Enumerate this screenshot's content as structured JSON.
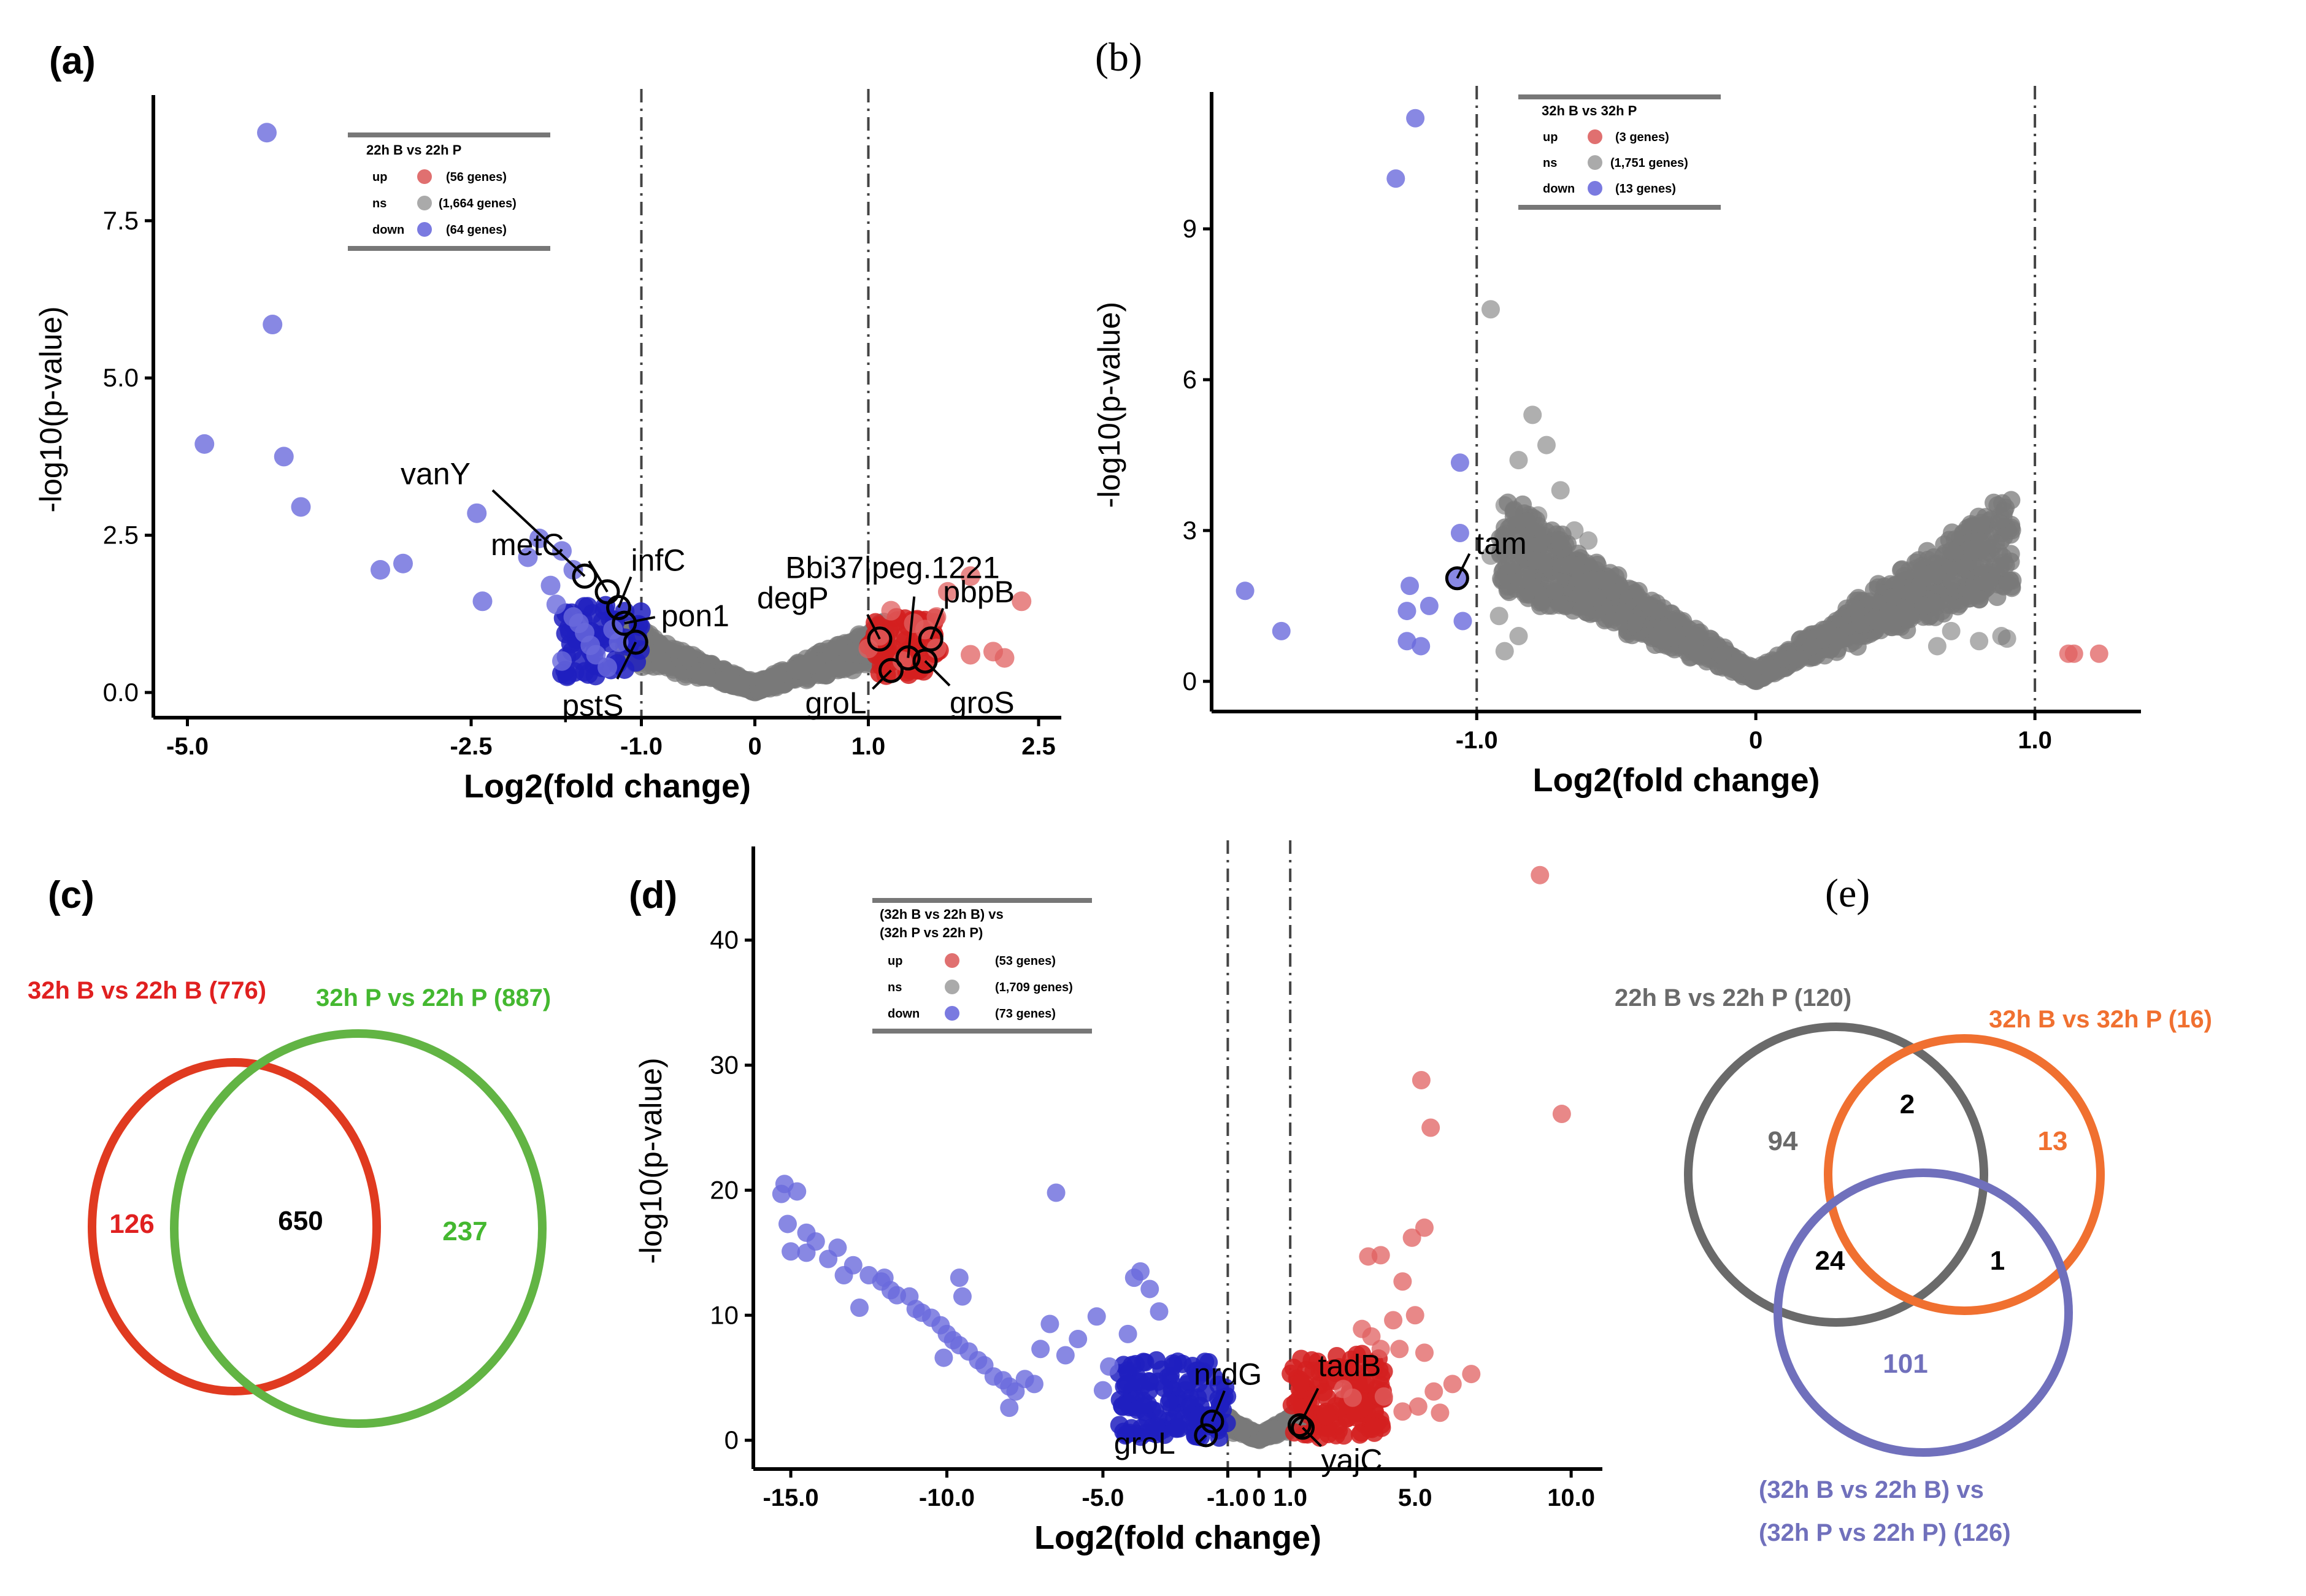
{
  "panels": {
    "a": {
      "label": "(a)"
    },
    "b": {
      "label": "(b)"
    },
    "c": {
      "label": "(c)"
    },
    "d": {
      "label": "(d)"
    },
    "e": {
      "label": "(e)"
    }
  },
  "colors": {
    "up": "#e06060",
    "up_dense": "#d42020",
    "ns": "#7a7a7a",
    "down": "#6a6adc",
    "down_dense": "#2020c0",
    "venn_red": "#e03a20",
    "venn_green": "#62b444",
    "venn_gray": "#6a6a6a",
    "venn_orange": "#f07030",
    "venn_purple": "#7070bc"
  },
  "chart_data": [
    {
      "id": "a",
      "type": "scatter",
      "xlabel": "Log2(fold change)",
      "ylabel": "-log10(p-value)",
      "xlim": [
        -5.3,
        2.7
      ],
      "ylim": [
        -0.4,
        9.4
      ],
      "xticks": [
        -5.0,
        -2.5,
        -1.0,
        0,
        1.0,
        2.5
      ],
      "xtick_labels": [
        "-5.0",
        "-2.5",
        "-1.0",
        "0",
        "1.0",
        "2.5"
      ],
      "yticks": [
        0.0,
        2.5,
        5.0,
        7.5
      ],
      "ytick_labels": [
        "0.0",
        "2.5",
        "5.0",
        "7.5"
      ],
      "thresholds": [
        -1.0,
        1.0
      ],
      "legend": {
        "title": "22h B vs 22h P",
        "rows": [
          {
            "key": "up",
            "count": "(56  genes)"
          },
          {
            "key": "ns",
            "count": "(1,664  genes)"
          },
          {
            "key": "down",
            "count": "(64  genes)"
          }
        ]
      },
      "up_points": [
        [
          1.2,
          1.3
        ],
        [
          1.5,
          1.0
        ],
        [
          1.9,
          1.85
        ],
        [
          1.7,
          1.6
        ],
        [
          2.35,
          1.45
        ],
        [
          2.1,
          0.65
        ],
        [
          1.9,
          0.6
        ],
        [
          1.6,
          0.7
        ],
        [
          1.4,
          1.1
        ],
        [
          2.2,
          0.55
        ],
        [
          1.1,
          0.9
        ],
        [
          1.0,
          0.7
        ],
        [
          1.3,
          0.5
        ],
        [
          1.6,
          1.2
        ]
      ],
      "down_points": [
        [
          -4.3,
          8.9
        ],
        [
          -4.25,
          5.85
        ],
        [
          -4.15,
          3.75
        ],
        [
          -4.85,
          3.95
        ],
        [
          -4.0,
          2.95
        ],
        [
          -2.45,
          2.85
        ],
        [
          -3.1,
          2.05
        ],
        [
          -3.3,
          1.95
        ],
        [
          -2.0,
          2.15
        ],
        [
          -2.4,
          1.45
        ],
        [
          -1.9,
          2.45
        ],
        [
          -1.7,
          2.25
        ],
        [
          -1.6,
          1.95
        ],
        [
          -1.8,
          1.7
        ],
        [
          -1.75,
          1.4
        ],
        [
          -1.6,
          1.2
        ],
        [
          -1.55,
          1.1
        ],
        [
          -1.5,
          0.95
        ],
        [
          -1.45,
          0.75
        ],
        [
          -1.4,
          0.6
        ],
        [
          -1.3,
          0.4
        ],
        [
          -1.7,
          0.5
        ],
        [
          -1.25,
          1.0
        ],
        [
          -1.2,
          0.8
        ]
      ],
      "labels": [
        {
          "text": "vanY",
          "pt": [
            -1.5,
            1.85
          ]
        },
        {
          "text": "metC",
          "pt": [
            -1.3,
            1.6
          ]
        },
        {
          "text": "infC",
          "pt": [
            -1.2,
            1.35
          ]
        },
        {
          "text": "pon1",
          "pt": [
            -1.15,
            1.1
          ]
        },
        {
          "text": "pstS",
          "pt": [
            -1.05,
            0.8
          ]
        },
        {
          "text": "Bbi37|peg.1221",
          "pt": [
            1.35,
            0.55
          ]
        },
        {
          "text": "degP",
          "pt": [
            1.1,
            0.85
          ]
        },
        {
          "text": "pbpB",
          "pt": [
            1.55,
            0.85
          ]
        },
        {
          "text": "groL",
          "pt": [
            1.2,
            0.35
          ]
        },
        {
          "text": "groS",
          "pt": [
            1.5,
            0.5
          ]
        }
      ]
    },
    {
      "id": "b",
      "type": "scatter",
      "xlabel": "Log2(fold change)",
      "ylabel": "-log10(p-value)",
      "xlim": [
        -1.95,
        1.38
      ],
      "ylim": [
        -0.6,
        11.6
      ],
      "xticks": [
        -1.0,
        0,
        1.0
      ],
      "xtick_labels": [
        "-1.0",
        "0",
        "1.0"
      ],
      "yticks": [
        0,
        3,
        6,
        9
      ],
      "ytick_labels": [
        "0",
        "3",
        "6",
        "9"
      ],
      "thresholds": [
        -1.0,
        1.0
      ],
      "legend": {
        "title": "32h B vs 32h P",
        "rows": [
          {
            "key": "up",
            "count": "(3  genes)"
          },
          {
            "key": "ns",
            "count": "(1,751  genes)"
          },
          {
            "key": "down",
            "count": "(13  genes)"
          }
        ]
      },
      "up_points": [
        [
          1.12,
          0.55
        ],
        [
          1.14,
          0.55
        ],
        [
          1.23,
          0.55
        ]
      ],
      "down_points": [
        [
          -1.22,
          11.2
        ],
        [
          -1.29,
          10.0
        ],
        [
          -1.06,
          4.35
        ],
        [
          -1.06,
          2.95
        ],
        [
          -1.07,
          2.05
        ],
        [
          -1.83,
          1.8
        ],
        [
          -1.24,
          1.9
        ],
        [
          -1.17,
          1.5
        ],
        [
          -1.7,
          1.0
        ],
        [
          -1.25,
          1.4
        ],
        [
          -1.05,
          1.2
        ],
        [
          -1.2,
          0.7
        ],
        [
          -1.25,
          0.8
        ]
      ],
      "ns_outliers": [
        [
          -0.95,
          7.4
        ],
        [
          -0.8,
          5.3
        ],
        [
          -0.75,
          4.7
        ],
        [
          -0.85,
          4.4
        ],
        [
          -0.7,
          3.8
        ],
        [
          -0.9,
          3.5
        ],
        [
          -0.78,
          3.3
        ],
        [
          -0.65,
          3.0
        ],
        [
          -0.6,
          2.8
        ],
        [
          -0.95,
          2.5
        ],
        [
          -0.88,
          2.3
        ],
        [
          -0.82,
          2.1
        ],
        [
          -0.72,
          1.8
        ],
        [
          -0.92,
          1.3
        ],
        [
          -0.85,
          0.9
        ],
        [
          -0.9,
          0.6
        ],
        [
          0.55,
          2.2
        ],
        [
          0.6,
          1.5
        ],
        [
          0.7,
          1.0
        ],
        [
          0.8,
          0.8
        ],
        [
          0.88,
          0.9
        ],
        [
          0.9,
          0.85
        ],
        [
          0.65,
          0.7
        ],
        [
          0.48,
          1.2
        ]
      ],
      "labels": [
        {
          "text": "tam",
          "pt": [
            -1.07,
            2.05
          ]
        }
      ]
    },
    {
      "id": "d",
      "type": "scatter",
      "xlabel": "Log2(fold change)",
      "ylabel": "-log10(p-value)",
      "xlim": [
        -16.2,
        11.0
      ],
      "ylim": [
        -2.3,
        47.0
      ],
      "xticks": [
        -15.0,
        -10.0,
        -5.0,
        -1.0,
        0,
        1.0,
        5.0,
        10.0
      ],
      "xtick_labels": [
        "-15.0",
        "-10.0",
        "-5.0",
        "-1.0",
        "0",
        "1.0",
        "5.0",
        "10.0"
      ],
      "yticks": [
        0,
        10,
        20,
        30,
        40
      ],
      "ytick_labels": [
        "0",
        "10",
        "20",
        "30",
        "40"
      ],
      "thresholds": [
        -1.0,
        1.0
      ],
      "legend": {
        "title_line1": "(32h B vs 22h B) vs",
        "title_line2": "(32h P vs 22h P)",
        "rows": [
          {
            "key": "up",
            "count": "(53       genes)"
          },
          {
            "key": "ns",
            "count": "(1,709    genes)"
          },
          {
            "key": "down",
            "count": "(73       genes)"
          }
        ]
      },
      "up_points": [
        [
          9.0,
          45.2
        ],
        [
          9.7,
          26.1
        ],
        [
          5.2,
          28.8
        ],
        [
          5.5,
          25.0
        ],
        [
          5.3,
          17.0
        ],
        [
          4.9,
          16.2
        ],
        [
          3.9,
          14.8
        ],
        [
          3.5,
          14.7
        ],
        [
          4.6,
          12.7
        ],
        [
          5.0,
          10.0
        ],
        [
          4.3,
          9.6
        ],
        [
          3.6,
          8.3
        ],
        [
          3.3,
          8.9
        ],
        [
          3.9,
          7.3
        ],
        [
          4.5,
          7.3
        ],
        [
          5.3,
          7.0
        ],
        [
          6.8,
          5.3
        ],
        [
          6.2,
          4.5
        ],
        [
          5.6,
          3.9
        ],
        [
          5.1,
          2.7
        ],
        [
          4.0,
          3.5
        ],
        [
          4.6,
          2.3
        ],
        [
          3.0,
          3.4
        ],
        [
          2.7,
          4.1
        ],
        [
          5.8,
          2.2
        ]
      ],
      "down_points": [
        [
          -15.2,
          20.5
        ],
        [
          -15.3,
          19.7
        ],
        [
          -14.8,
          19.9
        ],
        [
          -15.1,
          17.3
        ],
        [
          -14.5,
          16.6
        ],
        [
          -15.0,
          15.1
        ],
        [
          -14.5,
          15.0
        ],
        [
          -14.2,
          15.9
        ],
        [
          -13.8,
          14.5
        ],
        [
          -13.5,
          15.4
        ],
        [
          -13.0,
          14.0
        ],
        [
          -12.5,
          13.2
        ],
        [
          -12.1,
          12.7
        ],
        [
          -12.0,
          13.0
        ],
        [
          -11.8,
          12.0
        ],
        [
          -11.6,
          11.6
        ],
        [
          -11.2,
          11.5
        ],
        [
          -11.0,
          10.5
        ],
        [
          -10.8,
          10.2
        ],
        [
          -10.5,
          9.8
        ],
        [
          -10.2,
          9.2
        ],
        [
          -10.0,
          8.5
        ],
        [
          -9.8,
          8.0
        ],
        [
          -9.6,
          7.6
        ],
        [
          -9.3,
          7.1
        ],
        [
          -9.0,
          6.4
        ],
        [
          -8.8,
          6.0
        ],
        [
          -8.5,
          5.1
        ],
        [
          -8.2,
          4.8
        ],
        [
          -8.0,
          4.3
        ],
        [
          -7.8,
          3.9
        ],
        [
          -7.5,
          4.9
        ],
        [
          -7.2,
          4.5
        ],
        [
          -6.5,
          19.8
        ],
        [
          -6.7,
          9.3
        ],
        [
          -6.2,
          6.8
        ],
        [
          -5.8,
          8.1
        ],
        [
          -5.2,
          9.9
        ],
        [
          -5.0,
          4.0
        ],
        [
          -4.8,
          5.9
        ],
        [
          -4.2,
          8.5
        ],
        [
          -4.0,
          13.0
        ],
        [
          -3.8,
          13.5
        ],
        [
          -3.5,
          12.1
        ],
        [
          -3.2,
          10.3
        ],
        [
          -12.8,
          10.6
        ],
        [
          -13.3,
          13.2
        ],
        [
          -9.6,
          13.0
        ],
        [
          -9.5,
          11.5
        ],
        [
          -7.0,
          7.3
        ],
        [
          -8.0,
          2.6
        ],
        [
          -10.1,
          6.6
        ]
      ],
      "labels": [
        {
          "text": "nrdG",
          "pt": [
            -1.5,
            1.5
          ]
        },
        {
          "text": "groL",
          "pt": [
            -1.7,
            0.4
          ]
        },
        {
          "text": "tadB",
          "pt": [
            1.3,
            1.2
          ]
        },
        {
          "text": "yajC",
          "pt": [
            1.4,
            1.0
          ]
        }
      ]
    },
    {
      "id": "c",
      "type": "venn",
      "sets": [
        {
          "label": "32h B vs 22h B (776)",
          "color_key": "venn_red"
        },
        {
          "label": "32h P vs 22h P (887)",
          "color_key": "venn_green"
        }
      ],
      "regions": [
        {
          "value": "126",
          "color_key": "venn_red"
        },
        {
          "value": "650",
          "color_key": "black"
        },
        {
          "value": "237",
          "color_key": "venn_green"
        }
      ]
    },
    {
      "id": "e",
      "type": "venn",
      "sets": [
        {
          "label": "22h B vs 22h P (120)",
          "color_key": "venn_gray"
        },
        {
          "label": "32h B vs 32h P (16)",
          "color_key": "venn_orange"
        },
        {
          "label_line1": "(32h B vs 22h B) vs",
          "label_line2": "(32h P vs 22h P) (126)",
          "color_key": "venn_purple"
        }
      ],
      "regions": [
        {
          "value": "94",
          "color_key": "venn_gray"
        },
        {
          "value": "2",
          "color_key": "black"
        },
        {
          "value": "13",
          "color_key": "venn_orange"
        },
        {
          "value": "24",
          "color_key": "black"
        },
        {
          "value": "1",
          "color_key": "black"
        },
        {
          "value": "101",
          "color_key": "venn_purple"
        }
      ]
    }
  ]
}
